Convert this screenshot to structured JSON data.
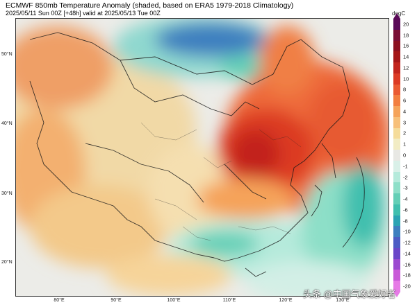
{
  "header": {
    "title": "ECMWF 850mb Temperature Anomaly (shaded, based on ERA5 1979-2018 Climatology)",
    "subtitle": "2025/05/11 Sun 00Z [+48h] valid at 2025/05/13 Tue 00Z"
  },
  "map": {
    "lat_labels": [
      "50°N",
      "40°N",
      "30°N",
      "20°N"
    ],
    "lon_labels": [
      "80°E",
      "90°E",
      "100°E",
      "110°E",
      "120°E",
      "130°E"
    ],
    "anomaly_pattern": {
      "warm_core": "North China Plain / Inner Mongolia / Northeast China",
      "cold_area": "Mongolia north-central, South China coast, East China Sea"
    }
  },
  "colorbar": {
    "unit": "degC",
    "ticks": [
      "20",
      "18",
      "16",
      "14",
      "12",
      "10",
      "8",
      "6",
      "4",
      "3",
      "2",
      "1",
      "0",
      "-1",
      "-2",
      "-3",
      "-4",
      "-6",
      "-8",
      "-10",
      "-12",
      "-14",
      "-16",
      "-18",
      "-20"
    ],
    "colors": [
      "#5a0a58",
      "#7a0f36",
      "#8c1020",
      "#a51618",
      "#c2241d",
      "#dc3a24",
      "#ea5a32",
      "#f27e3f",
      "#f5a35a",
      "#f7c07a",
      "#f5dc9b",
      "#f2ecc4",
      "#e8e8e4",
      "#d9f0e8",
      "#b5eadb",
      "#8ddfc8",
      "#63cfb6",
      "#40bfae",
      "#2ba3b3",
      "#3d7fbf",
      "#4c5cc4",
      "#6a46c8",
      "#9b4ad0",
      "#c95ad8",
      "#e67ae6"
    ]
  },
  "watermark": "头条 @中国气象爱好者"
}
